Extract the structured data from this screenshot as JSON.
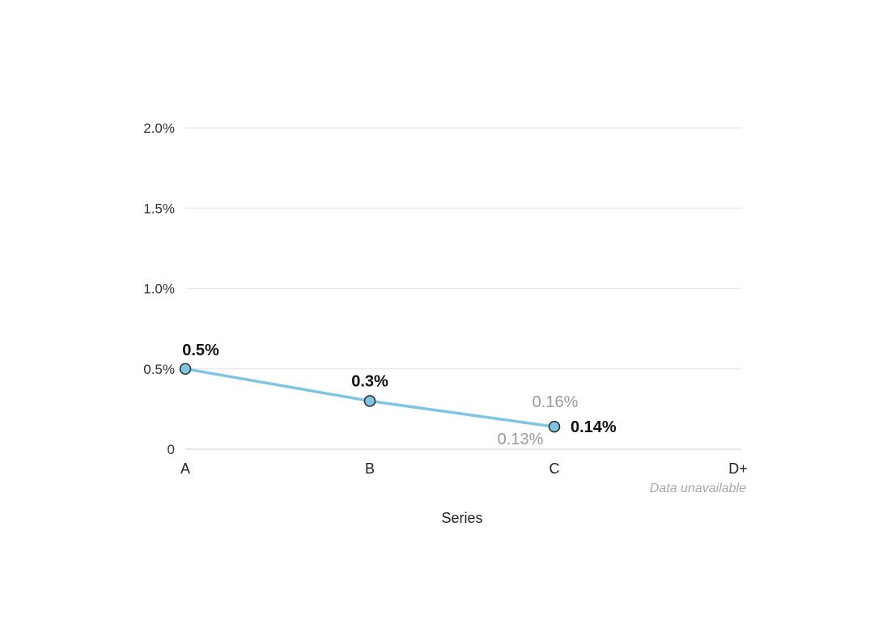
{
  "chart_data": {
    "type": "line",
    "title": "",
    "xlabel": "Series",
    "ylabel": "",
    "categories": [
      "A",
      "B",
      "C",
      "D+"
    ],
    "y_ticks": [
      "0",
      "0.5%",
      "1.0%",
      "1.5%",
      "2.0%"
    ],
    "y_tick_values": [
      0,
      0.5,
      1.0,
      1.5,
      2.0
    ],
    "ylim": [
      0,
      2.0
    ],
    "grid": true,
    "series": [
      {
        "values": [
          0.5,
          0.3,
          0.14,
          null
        ],
        "data_labels": [
          "0.5%",
          "0.3%",
          "0.14%",
          ""
        ],
        "color": "#7ec4e3"
      }
    ],
    "annotations": {
      "range_high": {
        "category": "C",
        "value": 0.16,
        "label": "0.16%"
      },
      "range_low": {
        "category": "C",
        "value": 0.13,
        "label": "0.13%"
      },
      "unavailable": {
        "category": "D+",
        "label": "Data unavailable"
      }
    },
    "colors": {
      "line": "#7ec4e3",
      "marker_fill": "#7ec4e3",
      "marker_stroke": "#333333",
      "grid": "#e8e8e8",
      "baseline": "#dddddd"
    }
  }
}
